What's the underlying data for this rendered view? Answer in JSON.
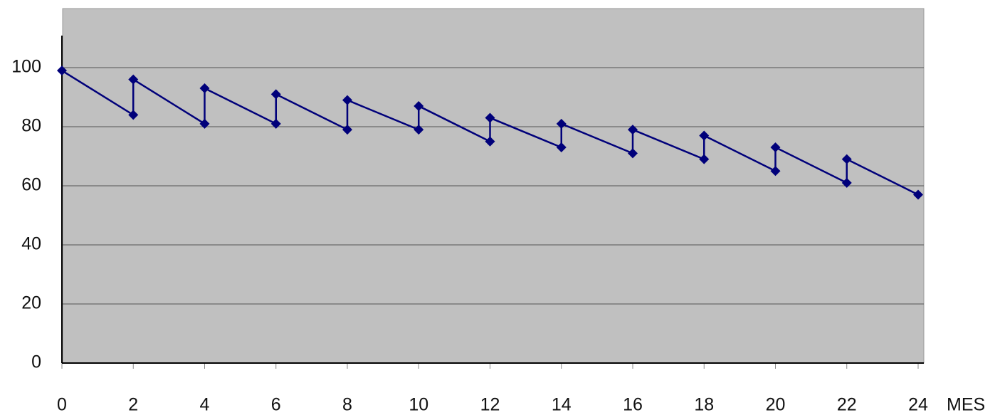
{
  "chart_data": {
    "type": "line",
    "x_label": "MES",
    "x": [
      0,
      2,
      2,
      4,
      4,
      6,
      6,
      8,
      8,
      10,
      10,
      12,
      12,
      14,
      14,
      16,
      16,
      18,
      18,
      20,
      20,
      22,
      22,
      24
    ],
    "series": [
      {
        "color": "#00007a",
        "values": [
          99,
          84,
          96,
          81,
          93,
          81,
          91,
          79,
          89,
          79,
          87,
          75,
          83,
          73,
          81,
          71,
          79,
          69,
          77,
          65,
          73,
          61,
          69,
          57
        ]
      }
    ],
    "xlim": [
      0,
      24
    ],
    "ylim": [
      0,
      120
    ],
    "xticks": [
      0,
      2,
      4,
      6,
      8,
      10,
      12,
      14,
      16,
      18,
      20,
      22,
      24
    ],
    "yticks": [
      0,
      20,
      40,
      60,
      80,
      100
    ],
    "grid": true
  }
}
